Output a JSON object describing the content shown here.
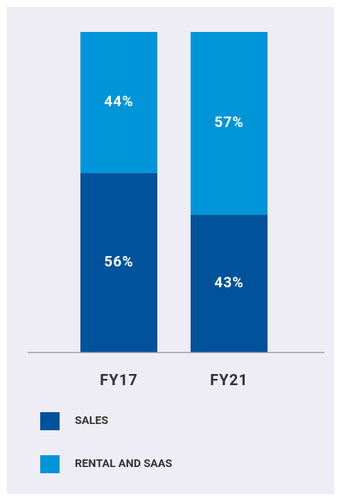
{
  "chart_data": {
    "type": "stacked_bar",
    "categories": [
      "FY17",
      "FY21"
    ],
    "series": [
      {
        "name": "SALES",
        "color": "#00529b",
        "values": [
          56,
          43
        ],
        "value_labels": [
          "56%",
          "43%"
        ]
      },
      {
        "name": "RENTAL AND SAAS",
        "color": "#0095d9",
        "values": [
          44,
          57
        ],
        "value_labels": [
          "44%",
          "57%"
        ]
      }
    ],
    "ylim": [
      0,
      100
    ]
  }
}
